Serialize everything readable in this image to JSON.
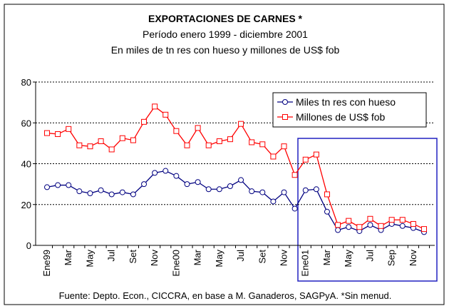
{
  "chart_data": {
    "type": "line",
    "title": "EXPORTACIONES DE CARNES *",
    "subtitle": [
      "Período enero 1999 - diciembre 2001",
      "En miles de tn res con hueso y millones de US$ fob"
    ],
    "source": "Fuente: Depto. Econ., CICCRA, en base a M. Ganaderos, SAGPyA. *Sin menud.",
    "categories": [
      "Ene99",
      null,
      "Mar",
      null,
      "May",
      null,
      "Jul",
      null,
      "Set",
      null,
      "Nov",
      null,
      "Ene00",
      null,
      "Mar",
      null,
      "May",
      null,
      "Jul",
      null,
      "Set",
      null,
      "Nov",
      null,
      "Ene01",
      null,
      "Mar",
      null,
      "May",
      null,
      "Jul",
      null,
      "Sep",
      null,
      "Nov",
      null
    ],
    "series": [
      {
        "name": "Miles tn res con hueso",
        "color": "#000080",
        "values": [
          28.5,
          29.5,
          29.5,
          26.5,
          25.5,
          27,
          25,
          26,
          25,
          30,
          35.5,
          36.5,
          34,
          30,
          31,
          27.5,
          27.5,
          29,
          32,
          26.5,
          26,
          21.5,
          26,
          18,
          27,
          27.5,
          16.5,
          7.5,
          9,
          7,
          10,
          7.5,
          10.5,
          9.5,
          8.5,
          6.5
        ]
      },
      {
        "name": "Millones de US$ fob",
        "color": "#ff0000",
        "values": [
          55,
          54.5,
          57,
          49,
          48.5,
          51,
          47,
          52.5,
          51.5,
          60.5,
          68,
          64,
          56,
          49,
          57.5,
          49,
          51,
          52,
          59.5,
          50.5,
          49.5,
          43.5,
          48.5,
          34.5,
          42,
          44.5,
          25,
          10,
          12,
          9,
          13,
          9.5,
          12.5,
          12.5,
          10.5,
          8
        ]
      }
    ],
    "ylim": [
      0,
      80
    ],
    "yticks": [
      0,
      20,
      40,
      60,
      80
    ],
    "grid": true,
    "legend": "upper right"
  }
}
